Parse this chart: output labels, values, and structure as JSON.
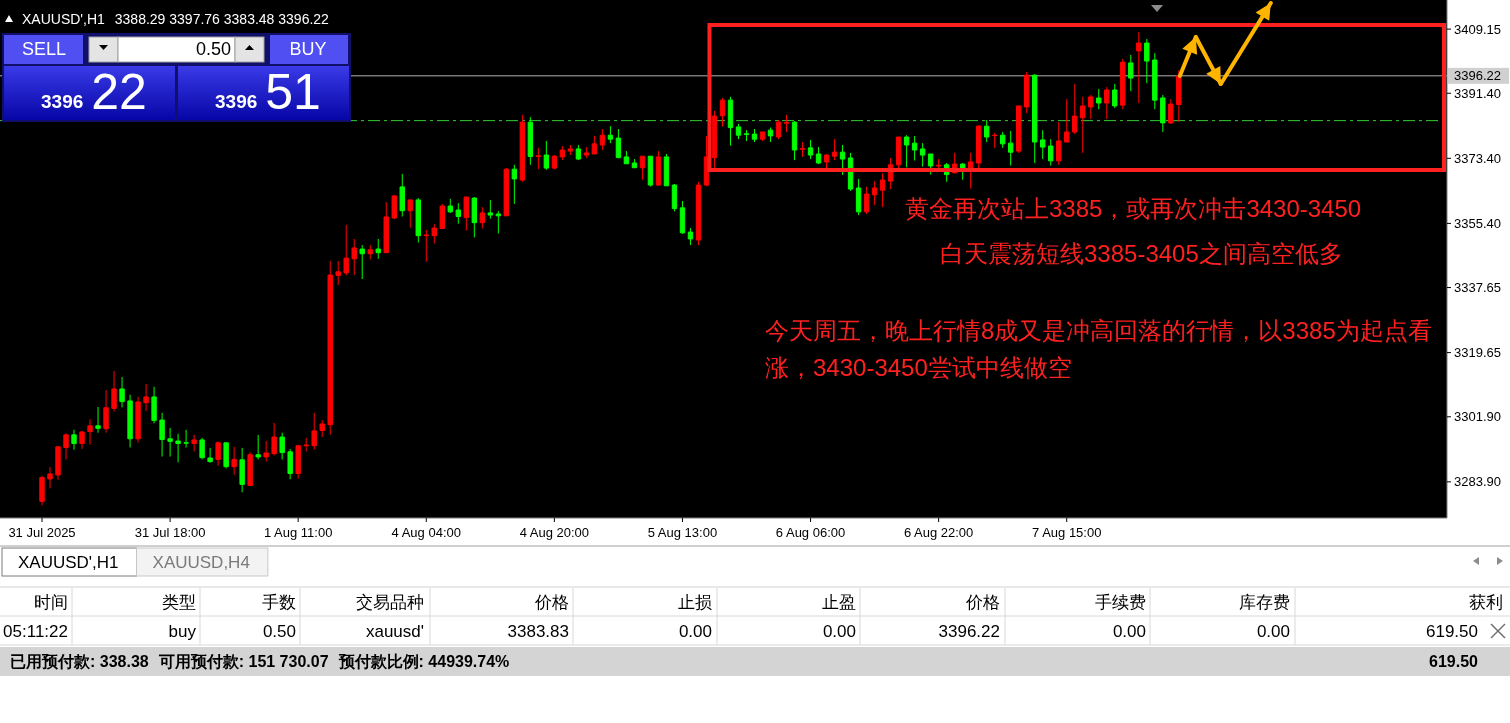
{
  "chart_data": [
    {
      "type": "candlestick",
      "title": "XAUUSD',H1",
      "subtitle": "3388.29 3397.76 3383.48 3396.22",
      "categories": [
        "31 Jul 2025",
        null,
        null,
        null,
        null,
        null,
        null,
        null,
        null,
        null,
        null,
        null,
        null,
        null,
        null,
        null,
        "31 Jul 18:00",
        null,
        null,
        null,
        null,
        null,
        null,
        null,
        null,
        null,
        null,
        null,
        null,
        null,
        null,
        null,
        "1 Aug 11:00",
        null,
        null,
        null,
        null,
        null,
        null,
        null,
        null,
        null,
        null,
        null,
        null,
        null,
        null,
        null,
        "4 Aug 04:00",
        null,
        null,
        null,
        null,
        null,
        null,
        null,
        null,
        null,
        null,
        null,
        null,
        null,
        null,
        null,
        "4 Aug 20:00",
        null,
        null,
        null,
        null,
        null,
        null,
        null,
        null,
        null,
        null,
        null,
        null,
        null,
        null,
        null,
        "5 Aug 13:00",
        null,
        null,
        null,
        null,
        null,
        null,
        null,
        null,
        null,
        null,
        null,
        null,
        null,
        null,
        null,
        "6 Aug 06:00",
        null,
        null,
        null,
        null,
        null,
        null,
        null,
        null,
        null,
        null,
        null,
        null,
        null,
        null,
        null,
        "6 Aug 22:00",
        null,
        null,
        null,
        null,
        null,
        null,
        null,
        null,
        null,
        null,
        null,
        null,
        null,
        null,
        null,
        "7 Aug 15:00",
        null,
        null,
        null,
        null,
        null,
        null,
        null,
        null,
        null,
        null,
        null,
        null,
        null,
        null,
        null,
        null,
        null,
        null,
        null,
        null,
        null,
        null,
        null,
        null,
        null,
        null,
        null,
        null,
        null,
        null,
        null,
        null,
        null,
        null,
        null,
        null,
        null,
        null,
        null,
        null,
        null,
        null,
        null,
        null,
        null,
        null,
        null
      ],
      "ohlc": [
        [
          3278.5,
          3285.6,
          3277.4,
          3285.1
        ],
        [
          3284.7,
          3288.0,
          3282.1,
          3286.1
        ],
        [
          3285.8,
          3293.6,
          3284.5,
          3293.6
        ],
        [
          3293.4,
          3297.3,
          3290.1,
          3296.9
        ],
        [
          3296.9,
          3298.3,
          3292.8,
          3294.5
        ],
        [
          3294.5,
          3298.0,
          3293.0,
          3297.7
        ],
        [
          3297.8,
          3301.2,
          3294.2,
          3299.4
        ],
        [
          3299.4,
          3304.6,
          3297.5,
          3298.7
        ],
        [
          3298.6,
          3309.3,
          3297.5,
          3304.4
        ],
        [
          3304.2,
          3314.6,
          3303.4,
          3309.6
        ],
        [
          3309.6,
          3312.9,
          3304.5,
          3306.1
        ],
        [
          3306.3,
          3308.0,
          3293.4,
          3295.8
        ],
        [
          3295.8,
          3307.4,
          3294.8,
          3306.0
        ],
        [
          3305.8,
          3311.0,
          3303.5,
          3307.4
        ],
        [
          3307.4,
          3310.2,
          3300.1,
          3300.9
        ],
        [
          3301.0,
          3303.0,
          3290.9,
          3295.6
        ],
        [
          3295.8,
          3298.8,
          3290.9,
          3295.1
        ],
        [
          3295.2,
          3297.2,
          3289.3,
          3294.5
        ],
        [
          3294.7,
          3298.3,
          3293.4,
          3294.6
        ],
        [
          3294.5,
          3296.9,
          3292.3,
          3295.5
        ],
        [
          3295.5,
          3296.1,
          3290.1,
          3290.6
        ],
        [
          3290.5,
          3293.3,
          3289.2,
          3289.5
        ],
        [
          3290.1,
          3295.0,
          3288.4,
          3294.7
        ],
        [
          3294.7,
          3294.7,
          3287.6,
          3288.1
        ],
        [
          3288.1,
          3293.6,
          3285.9,
          3290.1
        ],
        [
          3290.0,
          3293.3,
          3281.0,
          3283.2
        ],
        [
          3282.9,
          3292.1,
          3282.9,
          3291.4
        ],
        [
          3291.4,
          3296.9,
          3290.1,
          3290.8
        ],
        [
          3290.8,
          3295.2,
          3289.5,
          3291.9
        ],
        [
          3291.7,
          3300.2,
          3291.2,
          3296.3
        ],
        [
          3296.3,
          3297.5,
          3290.1,
          3292.0
        ],
        [
          3292.2,
          3293.0,
          3284.6,
          3286.2
        ],
        [
          3286.2,
          3294.1,
          3284.8,
          3293.9
        ],
        [
          3293.9,
          3296.1,
          3292.3,
          3294.1
        ],
        [
          3293.9,
          3303.0,
          3292.8,
          3298.0
        ],
        [
          3298.1,
          3301.0,
          3296.3,
          3299.9
        ],
        [
          3299.7,
          3345.0,
          3296.9,
          3341.1
        ],
        [
          3341.0,
          3345.0,
          3338.4,
          3342.0
        ],
        [
          3341.7,
          3355.0,
          3341.0,
          3345.8
        ],
        [
          3345.6,
          3351.1,
          3341.1,
          3348.6
        ],
        [
          3348.3,
          3349.4,
          3340.0,
          3347.0
        ],
        [
          3347.0,
          3349.4,
          3345.4,
          3348.1
        ],
        [
          3348.3,
          3351.1,
          3345.6,
          3347.3
        ],
        [
          3347.3,
          3361.3,
          3347.3,
          3357.2
        ],
        [
          3356.9,
          3363.3,
          3356.6,
          3363.0
        ],
        [
          3365.5,
          3369.1,
          3357.3,
          3358.9
        ],
        [
          3358.9,
          3361.9,
          3354.2,
          3361.9
        ],
        [
          3361.9,
          3362.4,
          3350.1,
          3352.0
        ],
        [
          3352.0,
          3353.6,
          3344.8,
          3352.2
        ],
        [
          3352.0,
          3355.2,
          3349.8,
          3354.1
        ],
        [
          3354.0,
          3360.8,
          3354.0,
          3360.2
        ],
        [
          3360.2,
          3362.2,
          3358.3,
          3358.6
        ],
        [
          3359.1,
          3361.0,
          3355.3,
          3357.3
        ],
        [
          3357.0,
          3362.7,
          3353.4,
          3362.7
        ],
        [
          3362.4,
          3362.7,
          3351.5,
          3355.6
        ],
        [
          3355.6,
          3359.9,
          3354.0,
          3358.3
        ],
        [
          3358.3,
          3361.9,
          3356.7,
          3357.7
        ],
        [
          3358.0,
          3358.8,
          3352.6,
          3357.5
        ],
        [
          3357.5,
          3370.7,
          3357.5,
          3370.4
        ],
        [
          3370.4,
          3371.6,
          3360.8,
          3367.7
        ],
        [
          3367.4,
          3385.4,
          3366.9,
          3383.4
        ],
        [
          3383.4,
          3384.8,
          3371.6,
          3373.9
        ],
        [
          3373.9,
          3376.3,
          3370.4,
          3374.1
        ],
        [
          3374.3,
          3378.2,
          3370.2,
          3370.7
        ],
        [
          3370.7,
          3374.3,
          3370.4,
          3374.0
        ],
        [
          3373.8,
          3376.8,
          3372.9,
          3375.7
        ],
        [
          3375.4,
          3377.1,
          3374.3,
          3376.0
        ],
        [
          3376.0,
          3377.1,
          3372.9,
          3373.2
        ],
        [
          3374.3,
          3376.5,
          3373.5,
          3374.9
        ],
        [
          3374.6,
          3379.6,
          3374.6,
          3377.4
        ],
        [
          3377.1,
          3381.5,
          3375.7,
          3379.8
        ],
        [
          3379.8,
          3382.3,
          3377.6,
          3378.7
        ],
        [
          3379.0,
          3381.5,
          3373.4,
          3373.6
        ],
        [
          3373.8,
          3375.4,
          3371.9,
          3371.9
        ],
        [
          3372.1,
          3373.2,
          3370.8,
          3370.8
        ],
        [
          3370.8,
          3374.0,
          3367.5,
          3374.0
        ],
        [
          3374.0,
          3374.0,
          3365.6,
          3366.0
        ],
        [
          3366.0,
          3375.4,
          3365.8,
          3373.8
        ],
        [
          3373.8,
          3374.6,
          3365.8,
          3365.8
        ],
        [
          3366.0,
          3366.3,
          3358.7,
          3359.5
        ],
        [
          3359.7,
          3361.6,
          3352.5,
          3352.8
        ],
        [
          3353.0,
          3354.1,
          3349.4,
          3351.1
        ],
        [
          3350.8,
          3366.9,
          3349.4,
          3366.0
        ],
        [
          3366.0,
          3379.6,
          3365.7,
          3373.8
        ],
        [
          3373.6,
          3386.5,
          3370.8,
          3385.1
        ],
        [
          3385.2,
          3390.1,
          3382.2,
          3389.5
        ],
        [
          3389.5,
          3390.4,
          3376.9,
          3381.9
        ],
        [
          3382.1,
          3382.9,
          3378.7,
          3379.8
        ],
        [
          3380.2,
          3381.2,
          3378.2,
          3380.0
        ],
        [
          3380.1,
          3381.5,
          3377.9,
          3378.7
        ],
        [
          3378.7,
          3380.7,
          3378.2,
          3380.7
        ],
        [
          3381.2,
          3381.9,
          3377.9,
          3379.6
        ],
        [
          3379.3,
          3384.0,
          3378.7,
          3383.4
        ],
        [
          3383.1,
          3385.4,
          3380.7,
          3383.3
        ],
        [
          3383.4,
          3383.7,
          3372.9,
          3375.7
        ],
        [
          3375.9,
          3377.9,
          3373.8,
          3376.1
        ],
        [
          3376.3,
          3378.5,
          3373.2,
          3374.3
        ],
        [
          3374.6,
          3376.5,
          3371.8,
          3372.1
        ],
        [
          3372.4,
          3374.6,
          3370.4,
          3374.3
        ],
        [
          3374.0,
          3378.7,
          3372.9,
          3375.1
        ],
        [
          3375.1,
          3377.1,
          3368.8,
          3373.2
        ],
        [
          3373.5,
          3374.9,
          3364.4,
          3364.9
        ],
        [
          3365.2,
          3367.7,
          3357.7,
          3358.6
        ],
        [
          3358.6,
          3365.5,
          3358.0,
          3363.5
        ],
        [
          3363.3,
          3367.1,
          3360.5,
          3365.2
        ],
        [
          3364.6,
          3369.3,
          3359.9,
          3367.4
        ],
        [
          3367.1,
          3373.5,
          3364.9,
          3371.6
        ],
        [
          3371.6,
          3379.3,
          3370.2,
          3379.3
        ],
        [
          3379.3,
          3379.8,
          3370.9,
          3377.1
        ],
        [
          3377.6,
          3379.6,
          3372.8,
          3375.7
        ],
        [
          3376.0,
          3377.6,
          3371.1,
          3374.3
        ],
        [
          3374.6,
          3374.6,
          3368.9,
          3371.3
        ],
        [
          3371.3,
          3373.2,
          3370.2,
          3371.5
        ],
        [
          3371.6,
          3372.1,
          3366.9,
          3368.9
        ],
        [
          3369.4,
          3374.9,
          3369.2,
          3371.8
        ],
        [
          3371.8,
          3372.1,
          3367.5,
          3370.7
        ],
        [
          3370.5,
          3374.9,
          3365.0,
          3372.4
        ],
        [
          3372.1,
          3382.6,
          3370.7,
          3382.3
        ],
        [
          3382.3,
          3384.0,
          3377.9,
          3379.3
        ],
        [
          3379.7,
          3380.4,
          3376.3,
          3379.8
        ],
        [
          3379.8,
          3380.7,
          3376.3,
          3377.4
        ],
        [
          3377.6,
          3381.0,
          3371.4,
          3375.1
        ],
        [
          3375.4,
          3387.9,
          3374.9,
          3387.9
        ],
        [
          3387.6,
          3397.3,
          3385.9,
          3396.4
        ],
        [
          3396.4,
          3396.7,
          3372.1,
          3377.9
        ],
        [
          3378.5,
          3381.2,
          3373.2,
          3376.5
        ],
        [
          3376.8,
          3378.7,
          3371.4,
          3372.7
        ],
        [
          3372.7,
          3383.4,
          3371.6,
          3378.2
        ],
        [
          3377.9,
          3389.8,
          3377.9,
          3380.7
        ],
        [
          3380.7,
          3394.0,
          3380.1,
          3385.1
        ],
        [
          3384.6,
          3390.4,
          3374.9,
          3387.9
        ],
        [
          3387.6,
          3390.9,
          3384.3,
          3390.4
        ],
        [
          3390.1,
          3392.6,
          3387.0,
          3388.7
        ],
        [
          3388.7,
          3393.1,
          3384.3,
          3392.3
        ],
        [
          3392.3,
          3394.0,
          3387.3,
          3387.9
        ],
        [
          3388.1,
          3400.9,
          3387.0,
          3400.0
        ],
        [
          3399.8,
          3402.0,
          3392.0,
          3395.6
        ],
        [
          3403.1,
          3408.3,
          3388.7,
          3405.3
        ],
        [
          3405.3,
          3406.4,
          3394.2,
          3400.3
        ],
        [
          3400.6,
          3402.5,
          3387.0,
          3389.5
        ],
        [
          3390.1,
          3390.9,
          3380.7,
          3383.2
        ],
        [
          3383.2,
          3389.8,
          3382.9,
          3388.4
        ],
        [
          3388.29,
          3397.76,
          3383.48,
          3396.22
        ],
        null,
        null,
        null,
        null,
        null,
        null,
        null,
        null,
        null,
        null,
        null,
        null,
        null,
        null,
        null,
        null,
        null,
        null,
        null,
        null,
        null,
        null,
        null,
        null,
        null,
        null,
        null,
        null,
        null,
        null,
        null,
        null,
        null
      ],
      "colors": [
        "#ff0000",
        "#ff0000",
        "#ff0000",
        "#ff0000",
        "#00ff00",
        "#ff0000",
        "#ff0000",
        "#00ff00",
        "#ff0000",
        "#ff0000",
        "#00ff00",
        "#00ff00",
        "#ff0000",
        "#ff0000",
        "#00ff00",
        "#00ff00",
        "#00ff00",
        "#00ff00",
        "#00ff00",
        "#ff0000",
        "#00ff00",
        "#00ff00",
        "#ff0000",
        "#00ff00",
        "#ff0000",
        "#00ff00",
        "#ff0000",
        "#00ff00",
        "#ff0000",
        "#ff0000",
        "#00ff00",
        "#00ff00",
        "#ff0000",
        "#ff0000",
        "#ff0000",
        "#ff0000",
        "#ff0000",
        "#ff0000",
        "#ff0000",
        "#ff0000",
        "#00ff00",
        "#ff0000",
        "#00ff00",
        "#ff0000",
        "#ff0000",
        "#00ff00",
        "#ff0000",
        "#00ff00",
        "#ff0000",
        "#ff0000",
        "#ff0000",
        "#00ff00",
        "#00ff00",
        "#ff0000",
        "#00ff00",
        "#ff0000",
        "#00ff00",
        "#00ff00",
        "#ff0000",
        "#00ff00",
        "#ff0000",
        "#00ff00",
        "#ff0000",
        "#00ff00",
        "#ff0000",
        "#ff0000",
        "#ff0000",
        "#00ff00",
        "#ff0000",
        "#ff0000",
        "#ff0000",
        "#00ff00",
        "#00ff00",
        "#00ff00",
        "#00ff00",
        "#ff0000",
        "#00ff00",
        "#ff0000",
        "#00ff00",
        "#00ff00",
        "#00ff00",
        "#00ff00",
        "#ff0000",
        "#ff0000",
        "#ff0000",
        "#ff0000",
        "#00ff00",
        "#00ff00",
        "#00ff00",
        "#00ff00",
        "#ff0000",
        "#00ff00",
        "#ff0000",
        "#ff0000",
        "#00ff00",
        "#ff0000",
        "#00ff00",
        "#00ff00",
        "#ff0000",
        "#ff0000",
        "#00ff00",
        "#00ff00",
        "#00ff00",
        "#ff0000",
        "#ff0000",
        "#ff0000",
        "#ff0000",
        "#ff0000",
        "#00ff00",
        "#00ff00",
        "#00ff00",
        "#00ff00",
        "#ff0000",
        "#00ff00",
        "#ff0000",
        "#00ff00",
        "#ff0000",
        "#ff0000",
        "#00ff00",
        "#ff0000",
        "#00ff00",
        "#00ff00",
        "#ff0000",
        "#ff0000",
        "#00ff00",
        "#00ff00",
        "#00ff00",
        "#ff0000",
        "#ff0000",
        "#ff0000",
        "#ff0000",
        "#ff0000",
        "#00ff00",
        "#ff0000",
        "#00ff00",
        "#ff0000",
        "#00ff00",
        "#ff0000",
        "#00ff00",
        "#00ff00",
        "#00ff00",
        "#ff0000",
        "#ff0000",
        null,
        null,
        null,
        null,
        null,
        null,
        null,
        null,
        null,
        null,
        null,
        null,
        null,
        null,
        null,
        null,
        null,
        null,
        null,
        null,
        null,
        null,
        null,
        null,
        null,
        null,
        null,
        null,
        null,
        null,
        null,
        null,
        null
      ],
      "ylim": [
        3273.9,
        3417.2
      ],
      "yticks": [
        {
          "value": 3409.15,
          "label": "3409.15"
        },
        {
          "value": 3391.4,
          "label": "3391.40"
        },
        {
          "value": 3373.4,
          "label": "3373.40"
        },
        {
          "value": 3355.4,
          "label": "3355.40"
        },
        {
          "value": 3337.65,
          "label": "3337.65"
        },
        {
          "value": 3319.65,
          "label": "3319.65"
        },
        {
          "value": 3301.9,
          "label": "3301.90"
        },
        {
          "value": 3283.9,
          "label": "3283.90"
        }
      ],
      "ref_lines": [
        {
          "axis": "y",
          "value": 3396.22,
          "label": "3396.22",
          "color": "#b4b4b4",
          "line_style": "solid"
        },
        {
          "axis": "y",
          "value": 3383.83,
          "color": "#32cd32",
          "line_style": "dashed"
        }
      ],
      "grid": false,
      "annotations": [
        "黄金再次站上3385，或再次冲击3430-3450",
        "白天震荡短线3385-3405之间高空低多",
        "今天周五，晚上行情8成又是冲高回落的行情，以3385为起点看涨，3430-3450尝试中线做空"
      ]
    },
    {
      "type": "other",
      "annotations": [
        "SELL",
        "0.50",
        "BUY",
        "3396",
        "22",
        "3396",
        "51"
      ]
    },
    {
      "type": "other",
      "annotations": [
        "XAUUSD',H1",
        "XAUUSD,H4"
      ]
    },
    {
      "type": "other",
      "annotations": [
        "时间",
        "类型",
        "手数",
        "交易品种",
        "价格",
        "止损",
        "止盈",
        "价格",
        "手续费",
        "库存费",
        "获利",
        "05:11:22",
        "buy",
        "0.50",
        "xauusd'",
        "3383.83",
        "0.00",
        "0.00",
        "3396.22",
        "0.00",
        "0.00",
        "619.50",
        "已用预付款: 338.38",
        "可用预付款: 151 730.07",
        "预付款比例: 44939.74%",
        "619.50"
      ]
    }
  ]
}
